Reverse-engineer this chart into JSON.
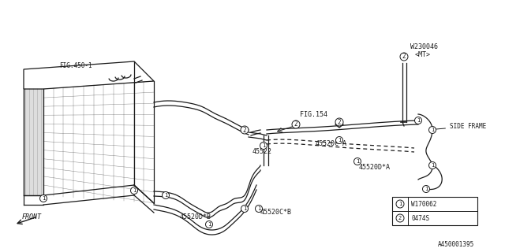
{
  "bg_color": "#ffffff",
  "line_color": "#1a1a1a",
  "fig_width": 6.4,
  "fig_height": 3.2,
  "dpi": 100,
  "part_labels": {
    "FIG_450_1": "FIG.450-1",
    "FIG_154": "FIG.154",
    "W230046": "W230046",
    "MT": "<MT>",
    "SIDE_FRAME": "SIDE FRAME",
    "part_45522": "45522",
    "part_45520D_B": "45520D*B",
    "part_45520C_B": "45520C*B",
    "part_45520C_A": "45520C*A",
    "part_45520D_A": "45520D*A",
    "FRONT": "FRONT",
    "doc_num": "A450001395",
    "legend1": "W170062",
    "legend2": "0474S"
  }
}
